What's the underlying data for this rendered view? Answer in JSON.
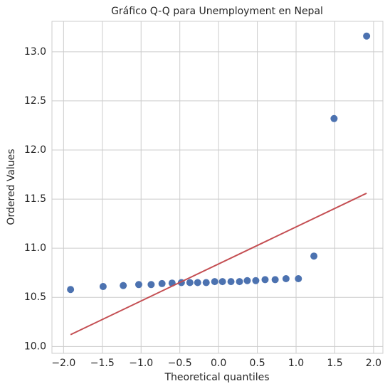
{
  "chart_data": {
    "type": "scatter",
    "title": "Gráfico Q-Q para Unemployment en Nepal",
    "xlabel": "Theoretical quantiles",
    "ylabel": "Ordered Values",
    "x": [
      -1.91,
      -1.49,
      -1.23,
      -1.03,
      -0.87,
      -0.73,
      -0.6,
      -0.48,
      -0.37,
      -0.27,
      -0.16,
      -0.05,
      0.05,
      0.16,
      0.27,
      0.37,
      0.48,
      0.6,
      0.73,
      0.87,
      1.03,
      1.23,
      1.49,
      1.91
    ],
    "values": [
      10.58,
      10.61,
      10.62,
      10.63,
      10.63,
      10.64,
      10.645,
      10.65,
      10.65,
      10.65,
      10.65,
      10.66,
      10.66,
      10.66,
      10.66,
      10.67,
      10.67,
      10.68,
      10.68,
      10.69,
      10.69,
      10.92,
      12.32,
      13.16
    ],
    "color": "#4c72b0",
    "fit_line": {
      "x": [
        -1.91,
        1.91
      ],
      "y": [
        10.12,
        11.56
      ],
      "color": "#c44e52"
    },
    "xlim": [
      -2.15,
      2.12
    ],
    "ylim": [
      9.93,
      13.31
    ],
    "xticks": [
      {
        "value": -2.0,
        "label": "−2.0"
      },
      {
        "value": -1.5,
        "label": "−1.5"
      },
      {
        "value": -1.0,
        "label": "−1.0"
      },
      {
        "value": -0.5,
        "label": "−0.5"
      },
      {
        "value": 0.0,
        "label": "0.0"
      },
      0.5,
      {
        "value": 1.0,
        "label": "1.0"
      },
      1.5,
      {
        "value": 2.0,
        "label": "2.0"
      }
    ],
    "yticks": [
      {
        "value": 10.0,
        "label": "10.0"
      },
      10.5,
      {
        "value": 11.0,
        "label": "11.0"
      },
      11.5,
      {
        "value": 12.0,
        "label": "12.0"
      },
      12.5,
      {
        "value": 13.0,
        "label": "13.0"
      }
    ],
    "grid": true
  }
}
